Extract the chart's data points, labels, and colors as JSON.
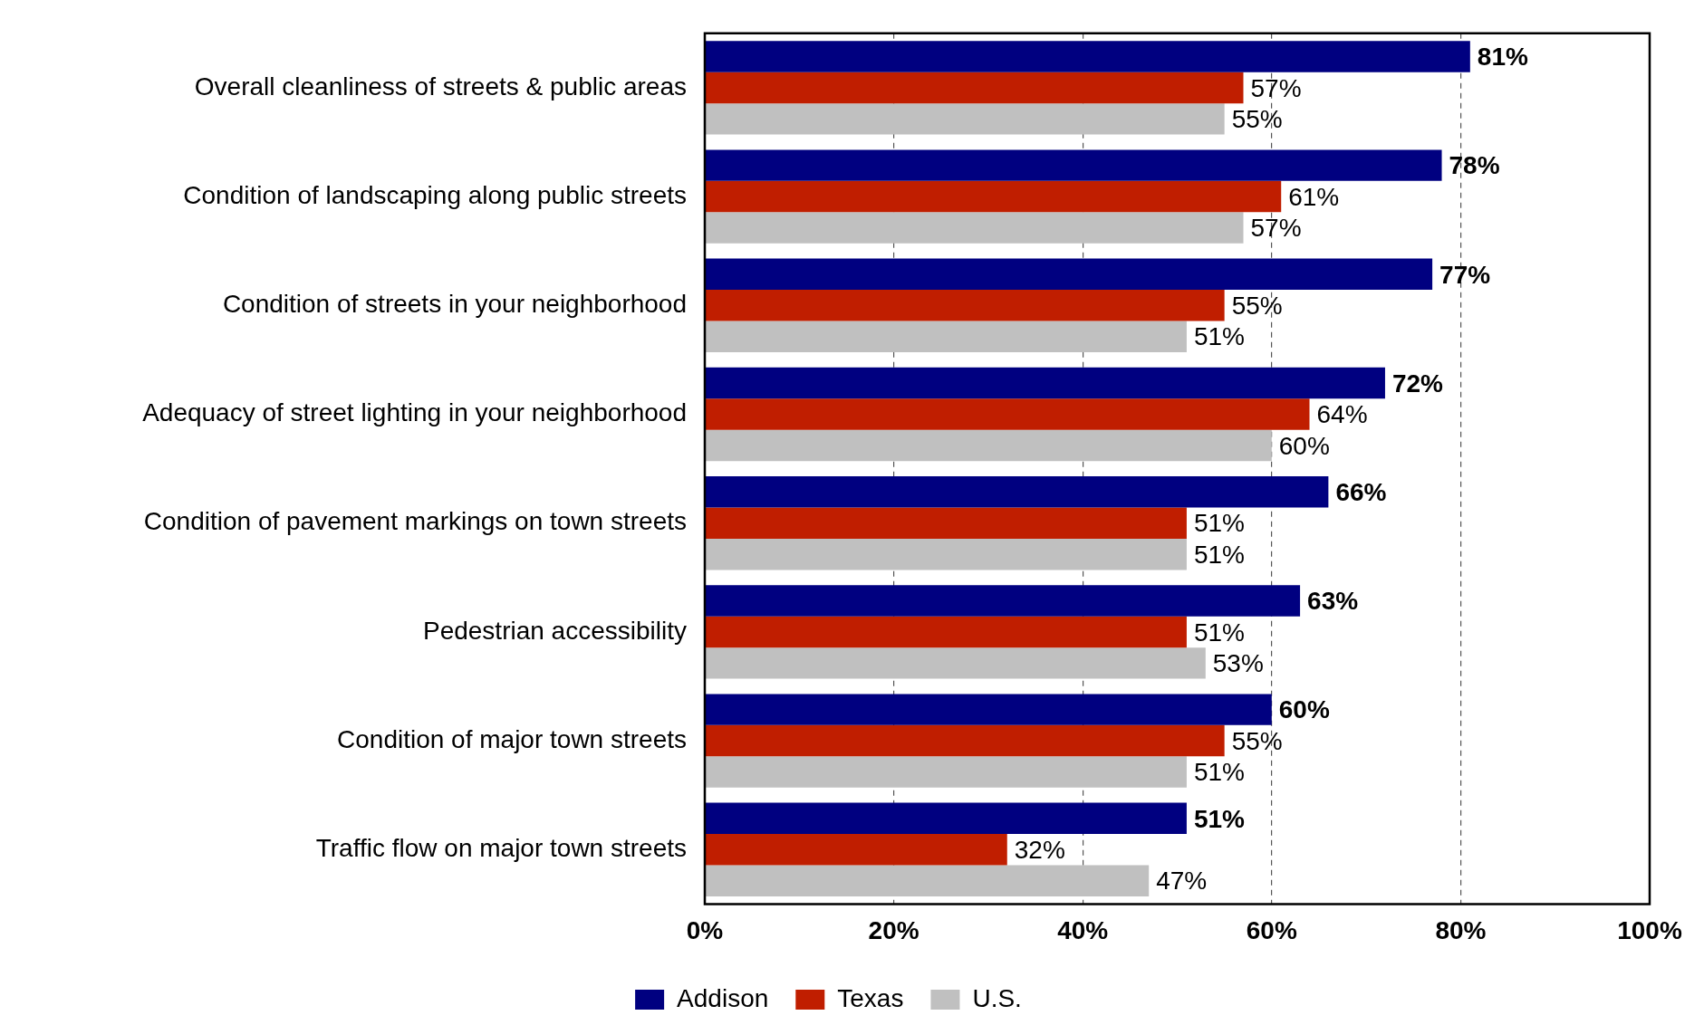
{
  "chart_data": {
    "type": "bar",
    "orientation": "horizontal",
    "categories": [
      "Overall cleanliness of streets & public areas",
      "Condition of landscaping along public streets",
      "Condition of streets in your neighborhood",
      "Adequacy of street lighting in your neighborhood",
      "Condition of pavement markings on town streets",
      "Pedestrian accessibility",
      "Condition of major town streets",
      "Traffic flow on major town streets"
    ],
    "series": [
      {
        "name": "Addison",
        "color": "#000080",
        "values": [
          81,
          78,
          77,
          72,
          66,
          63,
          60,
          51
        ],
        "value_labels": [
          "81%",
          "78%",
          "77%",
          "72%",
          "66%",
          "63%",
          "60%",
          "51%"
        ]
      },
      {
        "name": "Texas",
        "color": "#c01e00",
        "values": [
          57,
          61,
          55,
          64,
          51,
          51,
          55,
          32
        ],
        "value_labels": [
          "57%",
          "61%",
          "55%",
          "64%",
          "51%",
          "51%",
          "55%",
          "32%"
        ]
      },
      {
        "name": "U.S.",
        "color": "#c0c0c0",
        "values": [
          55,
          57,
          51,
          60,
          51,
          53,
          51,
          47
        ],
        "value_labels": [
          "55%",
          "57%",
          "51%",
          "60%",
          "51%",
          "53%",
          "51%",
          "47%"
        ]
      }
    ],
    "xlim": [
      0,
      100
    ],
    "xticks": [
      {
        "value": 0,
        "label": "0%"
      },
      {
        "value": 20,
        "label": "20%"
      },
      {
        "value": 40,
        "label": "40%"
      },
      {
        "value": 60,
        "label": "60%"
      },
      {
        "value": 80,
        "label": "80%"
      },
      {
        "value": 100,
        "label": "100%"
      }
    ],
    "grid": "x",
    "legend": "bottom"
  }
}
